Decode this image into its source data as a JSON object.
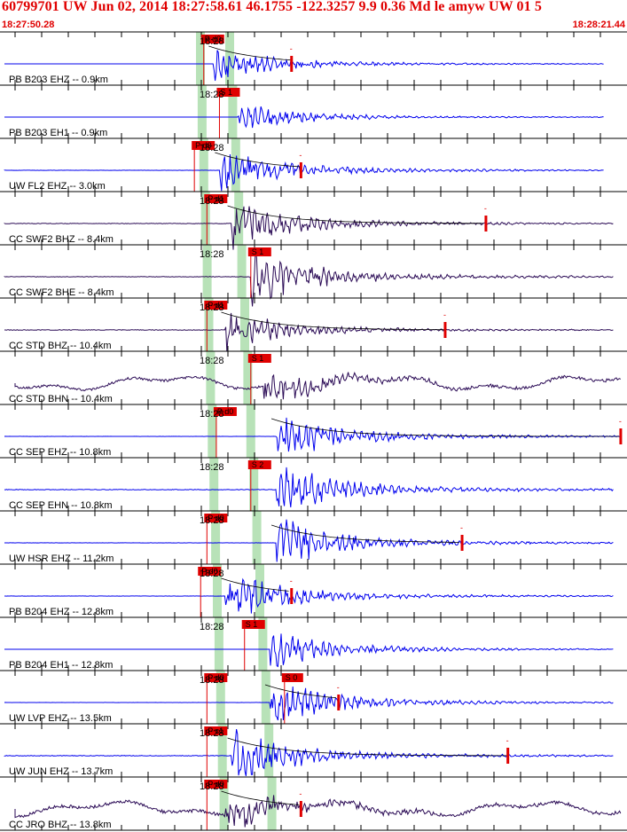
{
  "header": {
    "title": "60799701 UW Jun 02, 2014 18:27:58.61   46.1755 -122.3257  9.9 0.36 Md le amyw UW 01   5",
    "start_time": "18:27:50.28",
    "end_time": "18:28:21.44"
  },
  "colors": {
    "header_red": "#e00000",
    "trace_blue": "#0000ee",
    "trace_purple": "#2a0a55",
    "pick_red": "#e00000",
    "window_green": "#b8e2b8",
    "grid": "#000000"
  },
  "time_axis": {
    "tick_label": "18:28",
    "minor_ticks_per_panel": 23
  },
  "traces": [
    {
      "station": "PB B203 EHZ -- 0.9km",
      "time_label": "18:28",
      "color": "blue",
      "onset": 0.34,
      "amp": 0.55,
      "noise": 0.0,
      "pick": {
        "label": "iP d0",
        "pos": 0.325
      },
      "extra_label": "",
      "coda_mark": 0.465,
      "end": 0.963
    },
    {
      "station": "PB B203 EH1 -- 0.9km",
      "time_label": "18:28",
      "color": "blue",
      "onset": 0.38,
      "amp": 0.45,
      "noise": 0.0,
      "pick": {
        "label": "iS 1",
        "pos": 0.35
      },
      "extra_label": "",
      "coda_mark": null,
      "end": 0.963
    },
    {
      "station": "UW FL2 EHZ -- 3.0km",
      "time_label": "18:28",
      "color": "blue",
      "onset": 0.35,
      "amp": 0.7,
      "noise": 0.02,
      "pick": {
        "label": "iP d0",
        "pos": 0.31
      },
      "extra_label": "",
      "coda_mark": 0.48,
      "end": 0.963
    },
    {
      "station": "CC SWF2 BHZ -- 8.4km",
      "time_label": "18:28",
      "color": "purple",
      "onset": 0.37,
      "amp": 0.75,
      "noise": 0.04,
      "pick": {
        "label": "iP d1",
        "pos": 0.33
      },
      "extra_label": "",
      "coda_mark": 0.775,
      "end": 0.978
    },
    {
      "station": "CC SWF2 BHE -- 8.4km",
      "time_label": "18:28",
      "color": "purple",
      "onset": 0.4,
      "amp": 0.9,
      "noise": 0.04,
      "pick": {
        "label": "iS 1",
        "pos": 0.4
      },
      "extra_label": "",
      "coda_mark": null,
      "end": 0.978
    },
    {
      "station": "CC STD BHZ -- 10.4km",
      "time_label": "18:28",
      "color": "purple",
      "onset": 0.36,
      "amp": 0.6,
      "noise": 0.05,
      "pick": {
        "label": "iP d1",
        "pos": 0.33
      },
      "extra_label": "",
      "coda_mark": 0.71,
      "end": 0.978
    },
    {
      "station": "CC STD BHN -- 10.4km",
      "time_label": "18:28",
      "color": "purple",
      "onset": 0.42,
      "amp": 0.55,
      "noise": 0.2,
      "pick": {
        "label": "iS 1",
        "pos": 0.4
      },
      "extra_label": "",
      "coda_mark": null,
      "end": 0.99
    },
    {
      "station": "CC SEP EHZ -- 10.8km",
      "time_label": "18:28",
      "color": "blue",
      "onset": 0.44,
      "amp": 0.8,
      "noise": 0.01,
      "pick": {
        "label": "iP d0",
        "pos": 0.345
      },
      "extra_label": "",
      "coda_mark": 0.99,
      "end": 0.99
    },
    {
      "station": "CC SEP EHN -- 10.8km",
      "time_label": "18:28",
      "color": "blue",
      "onset": 0.44,
      "amp": 0.85,
      "noise": 0.05,
      "pick": {
        "label": "iS 2",
        "pos": 0.4
      },
      "extra_label": "",
      "coda_mark": null,
      "end": 0.978
    },
    {
      "station": "UW HSR EHZ -- 11.2km",
      "time_label": "18:28",
      "color": "blue",
      "onset": 0.44,
      "amp": 0.8,
      "noise": 0.02,
      "pick": {
        "label": "iP d0",
        "pos": 0.33
      },
      "extra_label": "",
      "coda_mark": 0.737,
      "end": 0.978
    },
    {
      "station": "PB B204 EHZ -- 12.8km",
      "time_label": "18:28",
      "color": "blue",
      "onset": 0.36,
      "amp": 0.8,
      "noise": 0.02,
      "pick": {
        "label": "iP d0",
        "pos": 0.32
      },
      "extra_label": "",
      "coda_mark": 0.465,
      "end": 0.978
    },
    {
      "station": "PB B204 EH1 -- 12.8km",
      "time_label": "18:28",
      "color": "blue",
      "onset": 0.43,
      "amp": 0.6,
      "noise": 0.0,
      "pick": {
        "label": "iS 1",
        "pos": 0.39
      },
      "extra_label": "",
      "coda_mark": null,
      "end": 0.978
    },
    {
      "station": "UW LVP EHZ -- 13.5km",
      "time_label": "18:28",
      "color": "blue",
      "onset": 0.43,
      "amp": 0.75,
      "noise": 0.01,
      "pick": {
        "label": "iP d0",
        "pos": 0.33
      },
      "extra_label": "iS 0",
      "coda_mark": 0.54,
      "end": 0.978
    },
    {
      "station": "UW JUN EHZ -- 13.7km",
      "time_label": "18:28",
      "color": "blue",
      "onset": 0.37,
      "amp": 0.85,
      "noise": 0.05,
      "pick": {
        "label": "iP c1",
        "pos": 0.33
      },
      "extra_label": "",
      "coda_mark": 0.81,
      "end": 0.978
    },
    {
      "station": "CC JRO BHZ -- 13.8km",
      "time_label": "18:28",
      "color": "purple",
      "onset": 0.36,
      "amp": 0.6,
      "noise": 0.25,
      "pick": {
        "label": "iP d0",
        "pos": 0.33
      },
      "extra_label": "",
      "coda_mark": 0.48,
      "end": 0.99
    }
  ]
}
